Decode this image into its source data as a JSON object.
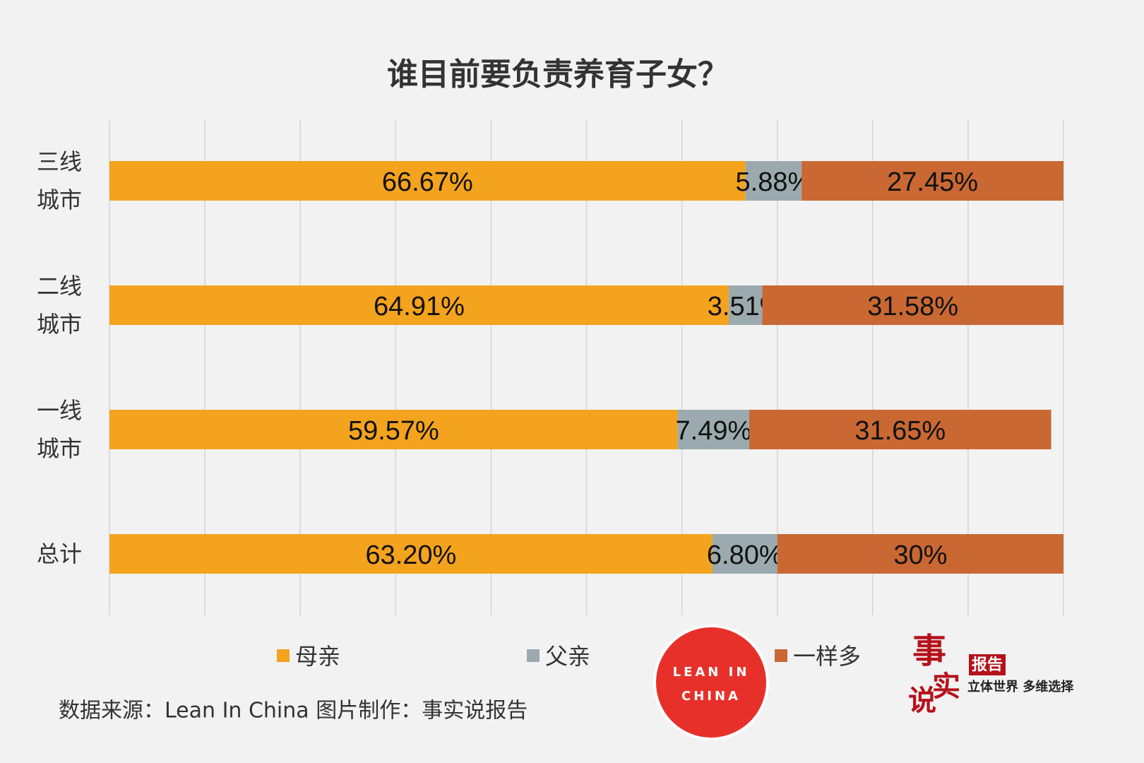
{
  "chart_data": {
    "type": "stacked-bar-horizontal",
    "title": "谁目前要负责养育子女？",
    "categories": [
      "三线城市",
      "二线城市",
      "一线城市",
      "总计"
    ],
    "series": [
      {
        "name": "母亲",
        "color": "#f4a31e",
        "values": [
          66.67,
          64.91,
          59.57,
          63.2
        ],
        "value_labels": [
          "66.67%",
          "64.91%",
          "59.57%",
          "63.20%"
        ]
      },
      {
        "name": "父亲",
        "color": "#9aaaae",
        "values": [
          5.88,
          3.51,
          7.49,
          6.8
        ],
        "value_labels": [
          "5.88%",
          "3.51%",
          "7.49%",
          "6.80%"
        ]
      },
      {
        "name": "一样多",
        "color": "#c96833",
        "values": [
          27.45,
          31.58,
          31.65,
          30
        ],
        "value_labels": [
          "27.45%",
          "31.58%",
          "31.65%",
          "30%"
        ]
      }
    ],
    "xlim": [
      0,
      100
    ],
    "xticks": [
      0,
      10,
      20,
      30,
      40,
      50,
      60,
      70,
      80,
      90,
      100
    ],
    "grid": true,
    "source": "数据来源：Lean In China  图片制作：事实说报告"
  },
  "logos": {
    "lean_in_top": "LEAN IN",
    "lean_in_bottom": "CHINA",
    "brand_chars": [
      "事",
      "实",
      "说"
    ],
    "brand_badge": "报告",
    "brand_slogan": "立体世界 多维选择"
  }
}
